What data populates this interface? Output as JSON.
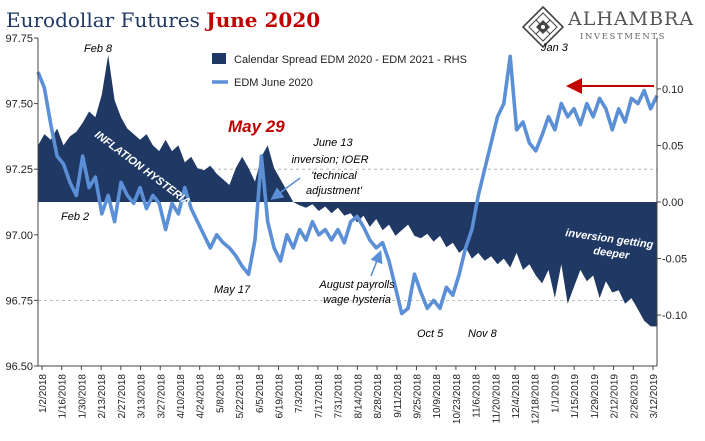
{
  "title": {
    "prefix": "Eurodollar Futures ",
    "highlight": "June 2020"
  },
  "logo": {
    "name": "ALHAMBRA",
    "subtitle": "INVESTMENTS"
  },
  "colors": {
    "spread": "#1f3864",
    "edm": "#5b8fd6",
    "title": "#1f3864",
    "highlight": "#c00000",
    "arrow": "#c00000",
    "gridline": "#aaaaaa"
  },
  "chart_data": {
    "type": "line",
    "x_tick_labels": [
      "1/2/2018",
      "1/16/2018",
      "1/30/2018",
      "2/13/2018",
      "2/27/2018",
      "3/13/2018",
      "3/27/2018",
      "4/10/2018",
      "4/24/2018",
      "5/8/2018",
      "5/22/2018",
      "6/5/2018",
      "6/19/2018",
      "7/3/2018",
      "7/17/2018",
      "7/31/2018",
      "8/14/2018",
      "8/28/2018",
      "9/11/2018",
      "9/25/2018",
      "10/9/2018",
      "10/23/2018",
      "11/6/2018",
      "11/20/2018",
      "12/4/2018",
      "12/18/2018",
      "1/1/2019",
      "1/15/2019",
      "1/29/2019",
      "2/12/2019",
      "2/26/2019",
      "3/12/2019"
    ],
    "y_left": {
      "ticks": [
        "97.75",
        "97.50",
        "97.25",
        "97.00",
        "96.75",
        "96.50"
      ],
      "ylim": [
        96.5,
        97.75
      ]
    },
    "y_right": {
      "ticks": [
        "0.10",
        "0.05",
        "0.00",
        "-0.05",
        "-0.10"
      ],
      "ylim": [
        -0.145,
        0.145
      ]
    },
    "series": [
      {
        "name": "Calendar Spread EDM 2020 - EDM 2021 - RHS",
        "kind": "area",
        "axis": "right",
        "points": [
          [
            0,
            0.05
          ],
          [
            1,
            0.06
          ],
          [
            2,
            0.055
          ],
          [
            3,
            0.065
          ],
          [
            4,
            0.05
          ],
          [
            5,
            0.058
          ],
          [
            6,
            0.062
          ],
          [
            7,
            0.07
          ],
          [
            8,
            0.08
          ],
          [
            9,
            0.075
          ],
          [
            10,
            0.095
          ],
          [
            11,
            0.13
          ],
          [
            12,
            0.09
          ],
          [
            13,
            0.075
          ],
          [
            14,
            0.065
          ],
          [
            15,
            0.06
          ],
          [
            16,
            0.055
          ],
          [
            17,
            0.06
          ],
          [
            18,
            0.05
          ],
          [
            19,
            0.045
          ],
          [
            20,
            0.055
          ],
          [
            21,
            0.045
          ],
          [
            22,
            0.05
          ],
          [
            23,
            0.035
          ],
          [
            24,
            0.04
          ],
          [
            25,
            0.03
          ],
          [
            26,
            0.028
          ],
          [
            27,
            0.032
          ],
          [
            28,
            0.025
          ],
          [
            29,
            0.02
          ],
          [
            30,
            0.015
          ],
          [
            31,
            0.03
          ],
          [
            32,
            0.04
          ],
          [
            33,
            0.03
          ],
          [
            34,
            0.018
          ],
          [
            35,
            0.04
          ],
          [
            36,
            0.05
          ],
          [
            37,
            0.03
          ],
          [
            38,
            0.02
          ],
          [
            39,
            0.01
          ],
          [
            40,
            0.0
          ],
          [
            41,
            -0.003
          ],
          [
            42,
            -0.005
          ],
          [
            43,
            -0.002
          ],
          [
            44,
            -0.008
          ],
          [
            45,
            -0.004
          ],
          [
            46,
            -0.01
          ],
          [
            47,
            -0.005
          ],
          [
            48,
            -0.012
          ],
          [
            49,
            -0.01
          ],
          [
            50,
            -0.018
          ],
          [
            51,
            -0.012
          ],
          [
            52,
            -0.022
          ],
          [
            53,
            -0.015
          ],
          [
            54,
            -0.025
          ],
          [
            55,
            -0.02
          ],
          [
            56,
            -0.03
          ],
          [
            57,
            -0.025
          ],
          [
            58,
            -0.02
          ],
          [
            59,
            -0.03
          ],
          [
            60,
            -0.032
          ],
          [
            61,
            -0.028
          ],
          [
            62,
            -0.035
          ],
          [
            63,
            -0.03
          ],
          [
            64,
            -0.04
          ],
          [
            65,
            -0.036
          ],
          [
            66,
            -0.045
          ],
          [
            67,
            -0.04
          ],
          [
            68,
            -0.05
          ],
          [
            69,
            -0.045
          ],
          [
            70,
            -0.052
          ],
          [
            71,
            -0.048
          ],
          [
            72,
            -0.055
          ],
          [
            73,
            -0.05
          ],
          [
            74,
            -0.058
          ],
          [
            75,
            -0.045
          ],
          [
            76,
            -0.06
          ],
          [
            77,
            -0.055
          ],
          [
            78,
            -0.065
          ],
          [
            79,
            -0.072
          ],
          [
            80,
            -0.06
          ],
          [
            81,
            -0.085
          ],
          [
            82,
            -0.055
          ],
          [
            83,
            -0.09
          ],
          [
            84,
            -0.075
          ],
          [
            85,
            -0.06
          ],
          [
            86,
            -0.07
          ],
          [
            87,
            -0.065
          ],
          [
            88,
            -0.085
          ],
          [
            89,
            -0.07
          ],
          [
            90,
            -0.08
          ],
          [
            91,
            -0.078
          ],
          [
            92,
            -0.09
          ],
          [
            93,
            -0.085
          ],
          [
            94,
            -0.095
          ],
          [
            95,
            -0.105
          ],
          [
            96,
            -0.11
          ],
          [
            97,
            -0.11
          ]
        ]
      },
      {
        "name": "EDM June 2020",
        "kind": "line",
        "axis": "left",
        "points": [
          [
            0,
            97.62
          ],
          [
            1,
            97.56
          ],
          [
            2,
            97.42
          ],
          [
            3,
            97.3
          ],
          [
            4,
            97.27
          ],
          [
            5,
            97.2
          ],
          [
            6,
            97.15
          ],
          [
            7,
            97.3
          ],
          [
            8,
            97.18
          ],
          [
            9,
            97.22
          ],
          [
            10,
            97.08
          ],
          [
            11,
            97.15
          ],
          [
            12,
            97.05
          ],
          [
            13,
            97.2
          ],
          [
            14,
            97.15
          ],
          [
            15,
            97.12
          ],
          [
            16,
            97.18
          ],
          [
            17,
            97.1
          ],
          [
            18,
            97.15
          ],
          [
            19,
            97.12
          ],
          [
            20,
            97.02
          ],
          [
            21,
            97.12
          ],
          [
            22,
            97.08
          ],
          [
            23,
            97.18
          ],
          [
            24,
            97.1
          ],
          [
            25,
            97.05
          ],
          [
            26,
            97.0
          ],
          [
            27,
            96.95
          ],
          [
            28,
            97.0
          ],
          [
            29,
            96.97
          ],
          [
            30,
            96.95
          ],
          [
            31,
            96.92
          ],
          [
            32,
            96.88
          ],
          [
            33,
            96.85
          ],
          [
            34,
            96.98
          ],
          [
            35,
            97.3
          ],
          [
            36,
            97.05
          ],
          [
            37,
            96.95
          ],
          [
            38,
            96.9
          ],
          [
            39,
            97.0
          ],
          [
            40,
            96.95
          ],
          [
            41,
            97.02
          ],
          [
            42,
            96.98
          ],
          [
            43,
            97.05
          ],
          [
            44,
            97.0
          ],
          [
            45,
            97.02
          ],
          [
            46,
            96.98
          ],
          [
            47,
            97.02
          ],
          [
            48,
            96.97
          ],
          [
            49,
            97.05
          ],
          [
            50,
            97.07
          ],
          [
            51,
            97.03
          ],
          [
            52,
            96.98
          ],
          [
            53,
            96.95
          ],
          [
            54,
            96.97
          ],
          [
            55,
            96.9
          ],
          [
            56,
            96.8
          ],
          [
            57,
            96.7
          ],
          [
            58,
            96.72
          ],
          [
            59,
            96.85
          ],
          [
            60,
            96.78
          ],
          [
            61,
            96.72
          ],
          [
            62,
            96.75
          ],
          [
            63,
            96.72
          ],
          [
            64,
            96.8
          ],
          [
            65,
            96.77
          ],
          [
            66,
            96.85
          ],
          [
            67,
            96.95
          ],
          [
            68,
            97.02
          ],
          [
            69,
            97.15
          ],
          [
            70,
            97.25
          ],
          [
            71,
            97.35
          ],
          [
            72,
            97.45
          ],
          [
            73,
            97.5
          ],
          [
            74,
            97.68
          ],
          [
            75,
            97.4
          ],
          [
            76,
            97.43
          ],
          [
            77,
            97.35
          ],
          [
            78,
            97.32
          ],
          [
            79,
            97.38
          ],
          [
            80,
            97.45
          ],
          [
            81,
            97.4
          ],
          [
            82,
            97.5
          ],
          [
            83,
            97.45
          ],
          [
            84,
            97.48
          ],
          [
            85,
            97.42
          ],
          [
            86,
            97.5
          ],
          [
            87,
            97.45
          ],
          [
            88,
            97.52
          ],
          [
            89,
            97.48
          ],
          [
            90,
            97.4
          ],
          [
            91,
            97.48
          ],
          [
            92,
            97.43
          ],
          [
            93,
            97.52
          ],
          [
            94,
            97.5
          ],
          [
            95,
            97.55
          ],
          [
            96,
            97.48
          ],
          [
            97,
            97.53
          ]
        ]
      }
    ],
    "annotations": [
      {
        "text": "Feb 8",
        "color": "#000000",
        "style": "italic"
      },
      {
        "text": "Feb 2",
        "color": "#000000",
        "style": "italic"
      },
      {
        "text": "May 29",
        "color": "#c00000",
        "style": "bold-italic"
      },
      {
        "text": "May 17",
        "color": "#000000",
        "style": "italic"
      },
      {
        "text": "June 13",
        "color": "#000000",
        "style": "italic"
      },
      {
        "text": "inversion; IOER",
        "color": "#000000",
        "style": "italic"
      },
      {
        "text": "'technical",
        "color": "#000000",
        "style": "italic"
      },
      {
        "text": "adjustment'",
        "color": "#000000",
        "style": "italic"
      },
      {
        "text": "August payrolls",
        "color": "#000000",
        "style": "italic"
      },
      {
        "text": "wage hysteria",
        "color": "#000000",
        "style": "italic"
      },
      {
        "text": "Oct 5",
        "color": "#000000",
        "style": "italic"
      },
      {
        "text": "Nov 8",
        "color": "#000000",
        "style": "italic"
      },
      {
        "text": "Jan 3",
        "color": "#000000",
        "style": "italic"
      },
      {
        "text": "INFLATION HYSTERIA",
        "color": "#ffffff",
        "style": "bold-italic"
      },
      {
        "text": "inversion getting",
        "color": "#ffffff",
        "style": "bold-italic"
      },
      {
        "text": "deeper",
        "color": "#ffffff",
        "style": "bold-italic"
      }
    ],
    "legend_placement": "top-center",
    "grid": false
  }
}
